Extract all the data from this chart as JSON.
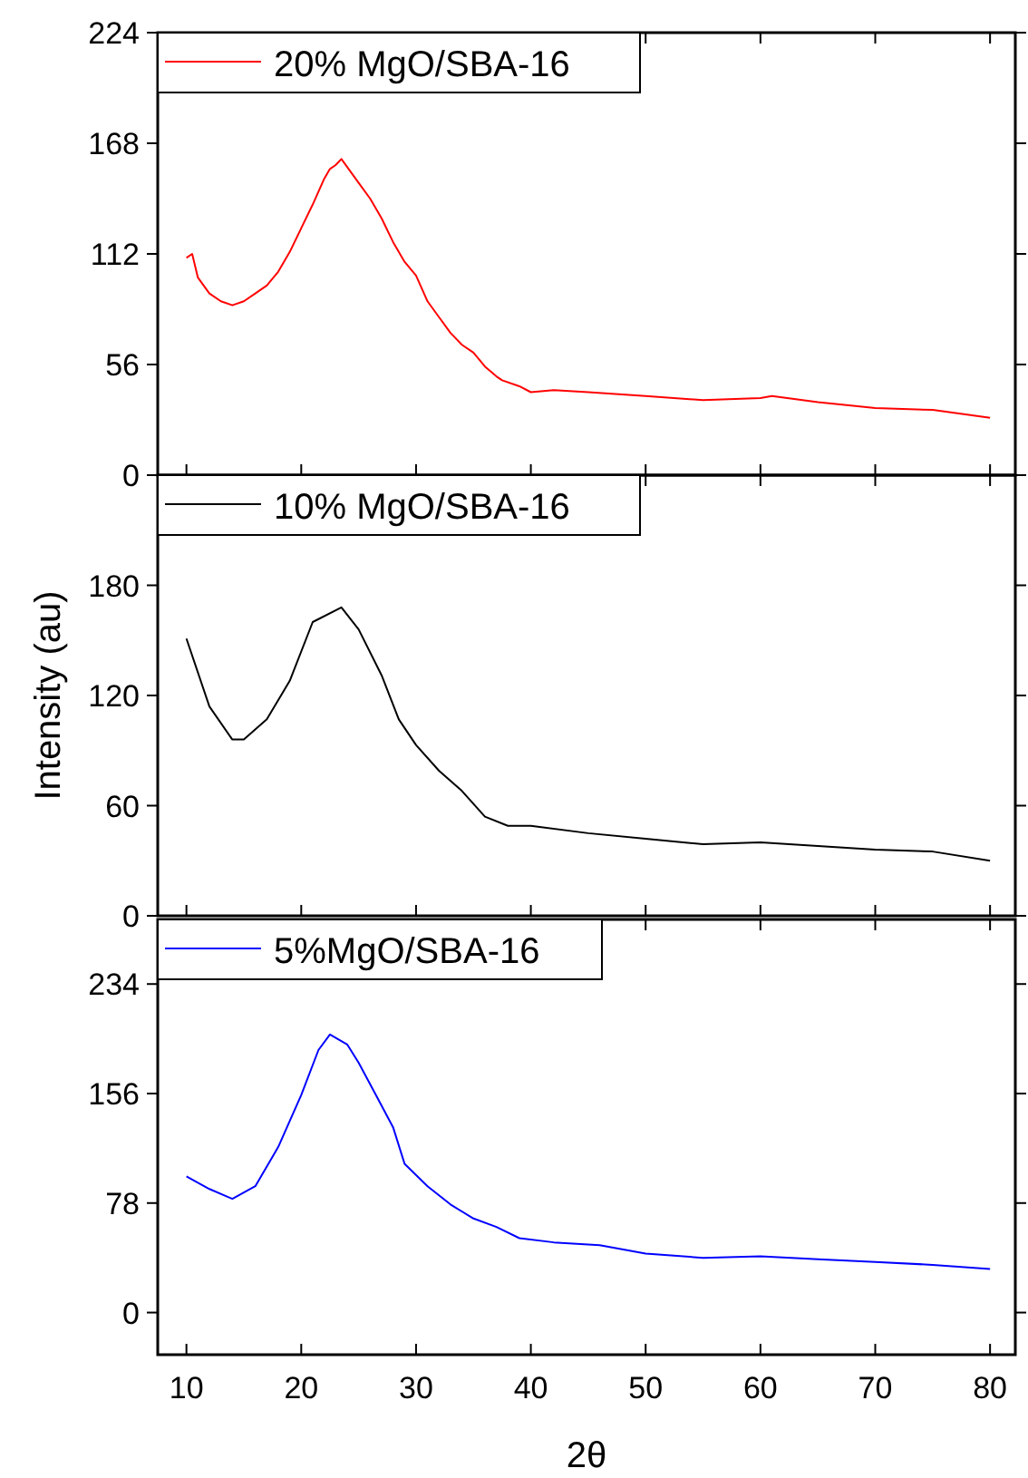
{
  "chart_data": [
    {
      "type": "line",
      "xlim": [
        7.5,
        82.2
      ],
      "xticks": [
        10,
        20,
        30,
        40,
        50,
        60,
        70,
        80
      ],
      "ylim": [
        0,
        224
      ],
      "yticks": [
        0,
        56,
        112,
        168,
        224
      ],
      "tick_labels": "y",
      "legend": "top left",
      "series": [
        {
          "name": "20% MgO/SBA-16",
          "color": "#ff0000",
          "x": [
            10,
            10.5,
            11,
            12,
            13,
            14,
            15,
            16,
            17,
            18,
            19,
            20,
            21,
            22,
            22.5,
            23,
            23.5,
            24,
            25,
            26,
            27,
            28,
            29,
            30,
            31,
            32,
            33,
            34,
            35,
            36,
            37,
            37.5,
            39,
            40,
            42,
            45,
            50,
            55,
            60,
            61,
            65,
            70,
            75,
            80
          ],
          "values": [
            110,
            112,
            100,
            92,
            88,
            86,
            88,
            92,
            96,
            103,
            113,
            125,
            137,
            150,
            155,
            157,
            160,
            156,
            148,
            140,
            130,
            118,
            108,
            101,
            88,
            80,
            72,
            66,
            62,
            55,
            50,
            48,
            45,
            42,
            43,
            42,
            40,
            38,
            39,
            40,
            37,
            34,
            33,
            29
          ]
        }
      ]
    },
    {
      "type": "line",
      "xlim": [
        7.5,
        82.2
      ],
      "xticks": [
        10,
        20,
        30,
        40,
        50,
        60,
        70,
        80
      ],
      "ylim": [
        0,
        240
      ],
      "yticks": [
        0,
        60,
        120,
        180
      ],
      "ylabel": "Intensity (au)",
      "tick_labels": "y",
      "legend": "top left",
      "series": [
        {
          "name": "10% MgO/SBA-16",
          "color": "#000000",
          "x": [
            10,
            12,
            14,
            15,
            17,
            19,
            21,
            23.5,
            25,
            27,
            28.5,
            30,
            32,
            34,
            36,
            38,
            40,
            45,
            50,
            55,
            60,
            65,
            70,
            75,
            80
          ],
          "values": [
            151,
            114,
            96,
            96,
            107,
            128,
            160,
            168,
            156,
            131,
            107,
            93,
            79,
            68,
            54,
            49,
            49,
            45,
            42,
            39,
            40,
            38,
            36,
            35,
            30
          ]
        }
      ]
    },
    {
      "type": "line",
      "xlim": [
        7.5,
        82.2
      ],
      "xticks": [
        10,
        20,
        30,
        40,
        50,
        60,
        70,
        80
      ],
      "ylim": [
        -30,
        280
      ],
      "yticks": [
        0,
        78,
        156,
        234
      ],
      "xlabel": "2θ",
      "legend": "top left",
      "series": [
        {
          "name": "5%MgO/SBA-16",
          "color": "#0000ff",
          "x": [
            10,
            12,
            14,
            16,
            18,
            20,
            21.5,
            22.5,
            24,
            25,
            26.5,
            28,
            29,
            31,
            33,
            35,
            37,
            39,
            42,
            46,
            50,
            55,
            60,
            65,
            70,
            75,
            80
          ],
          "values": [
            97,
            88,
            81,
            90,
            118,
            155,
            187,
            198,
            191,
            178,
            155,
            132,
            106,
            90,
            77,
            67,
            61,
            53,
            50,
            48,
            42,
            39,
            40,
            38,
            36,
            34,
            31
          ]
        }
      ]
    }
  ]
}
